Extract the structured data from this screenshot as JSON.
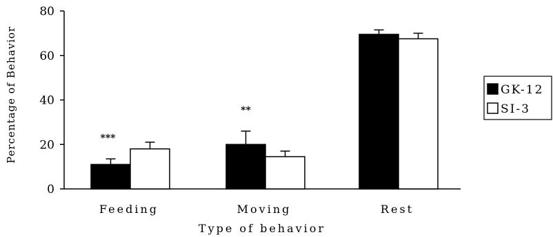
{
  "chart_data": {
    "type": "bar",
    "categories": [
      "Feeding",
      "Moving",
      "Rest"
    ],
    "series": [
      {
        "name": "GK-12",
        "values": [
          11,
          20,
          69.5
        ],
        "errors": [
          2.5,
          6,
          2
        ],
        "color": "#000000"
      },
      {
        "name": "SI-3",
        "values": [
          18,
          14.5,
          67.5
        ],
        "errors": [
          3,
          2.5,
          2.5
        ],
        "color": "#ffffff"
      }
    ],
    "significance": [
      "***",
      "**",
      ""
    ],
    "xlabel": "Type of behavior",
    "ylabel": "Percentage of Behavior",
    "ylim": [
      0,
      80
    ],
    "yticks": [
      0,
      20,
      40,
      60,
      80
    ],
    "legend_position": "right",
    "grid": false
  }
}
